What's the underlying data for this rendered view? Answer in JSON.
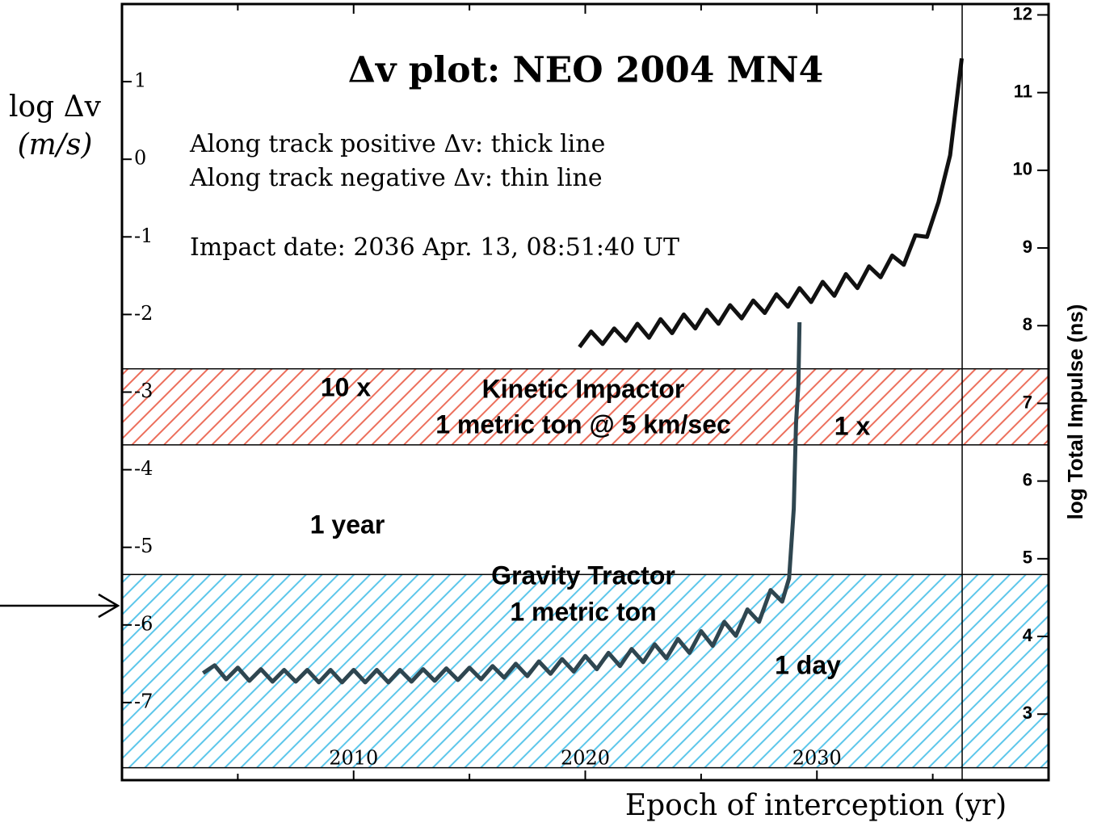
{
  "chart_data": {
    "type": "line",
    "title": "Δv plot: NEO 2004 MN4",
    "ylabel": [
      "log Δv",
      "(m/s)"
    ],
    "y2label": "log Total Impulse  (ns)",
    "xlabel": "Epoch of interception (yr)",
    "annotations": [
      "Along track positive Δv: thick line",
      "Along track negative Δv: thin line",
      "Impact date: 2036 Apr. 13, 08:51:40 UT",
      "10 x",
      "Kinetic Impactor",
      "1 metric ton @ 5 km/sec",
      "1 x",
      "1 year",
      "Gravity Tractor",
      "1 metric ton",
      "1 day"
    ],
    "xlim": [
      2000,
      2040
    ],
    "xticks": [
      2010,
      2020,
      2030
    ],
    "xticks_minor": [
      2005,
      2015,
      2025,
      2035
    ],
    "ylim": [
      -8,
      2
    ],
    "yticks": [
      -7,
      -6,
      -5,
      -4,
      -3,
      -2,
      -1,
      0,
      1
    ],
    "y2lim": [
      2.15,
      12.14
    ],
    "y2ticks": [
      3,
      4,
      5,
      6,
      7,
      8,
      9,
      10,
      11,
      12
    ],
    "impact_x": 2036.27,
    "bands": [
      {
        "range": [
          -3.68,
          -2.7
        ],
        "color": "#ec6f5c"
      },
      {
        "range": [
          -7.84,
          -5.35
        ],
        "color": "#5cc6ea"
      }
    ],
    "series": [
      {
        "color": "#111111",
        "x": [
          2019.75,
          2020.25,
          2020.75,
          2021.25,
          2021.75,
          2022.25,
          2022.75,
          2023.25,
          2023.75,
          2024.25,
          2024.75,
          2025.25,
          2025.75,
          2026.25,
          2026.75,
          2027.25,
          2027.75,
          2028.25,
          2028.75,
          2029.25,
          2029.75,
          2030.25,
          2030.75,
          2031.25,
          2031.75,
          2032.25,
          2032.75,
          2033.25,
          2033.75,
          2034.25,
          2034.75,
          2035.25,
          2035.75,
          2036.25
        ],
        "values": [
          -2.42,
          -2.22,
          -2.38,
          -2.18,
          -2.34,
          -2.12,
          -2.3,
          -2.06,
          -2.24,
          -2.0,
          -2.18,
          -1.94,
          -2.12,
          -1.88,
          -2.05,
          -1.82,
          -1.98,
          -1.74,
          -1.9,
          -1.66,
          -1.84,
          -1.58,
          -1.76,
          -1.48,
          -1.66,
          -1.38,
          -1.52,
          -1.24,
          -1.36,
          -0.98,
          -1.0,
          -0.55,
          0.05,
          1.3
        ]
      },
      {
        "color": "#2f4650",
        "x": [
          2003.5,
          2004,
          2004.5,
          2005,
          2005.5,
          2006,
          2006.5,
          2007,
          2007.5,
          2008,
          2008.5,
          2009,
          2009.5,
          2010,
          2010.5,
          2011,
          2011.5,
          2012,
          2012.5,
          2013,
          2013.5,
          2014,
          2014.5,
          2015,
          2015.5,
          2016,
          2016.5,
          2017,
          2017.5,
          2018,
          2018.5,
          2019,
          2019.5,
          2020,
          2020.5,
          2021,
          2021.5,
          2022,
          2022.5,
          2023,
          2023.5,
          2024,
          2024.5,
          2025,
          2025.5,
          2026,
          2026.5,
          2027,
          2027.5,
          2028,
          2028.5,
          2028.8,
          2029.0,
          2029.1,
          2029.2,
          2029.25
        ],
        "values": [
          -6.62,
          -6.52,
          -6.7,
          -6.55,
          -6.72,
          -6.57,
          -6.73,
          -6.58,
          -6.73,
          -6.58,
          -6.74,
          -6.58,
          -6.74,
          -6.58,
          -6.74,
          -6.58,
          -6.74,
          -6.58,
          -6.73,
          -6.57,
          -6.72,
          -6.56,
          -6.71,
          -6.55,
          -6.7,
          -6.53,
          -6.68,
          -6.5,
          -6.66,
          -6.47,
          -6.63,
          -6.44,
          -6.6,
          -6.4,
          -6.57,
          -6.36,
          -6.53,
          -6.31,
          -6.48,
          -6.25,
          -6.43,
          -6.18,
          -6.36,
          -6.08,
          -6.27,
          -5.96,
          -6.14,
          -5.8,
          -5.96,
          -5.55,
          -5.7,
          -5.4,
          -4.5,
          -3.4,
          -2.9,
          -2.1
        ]
      }
    ]
  }
}
